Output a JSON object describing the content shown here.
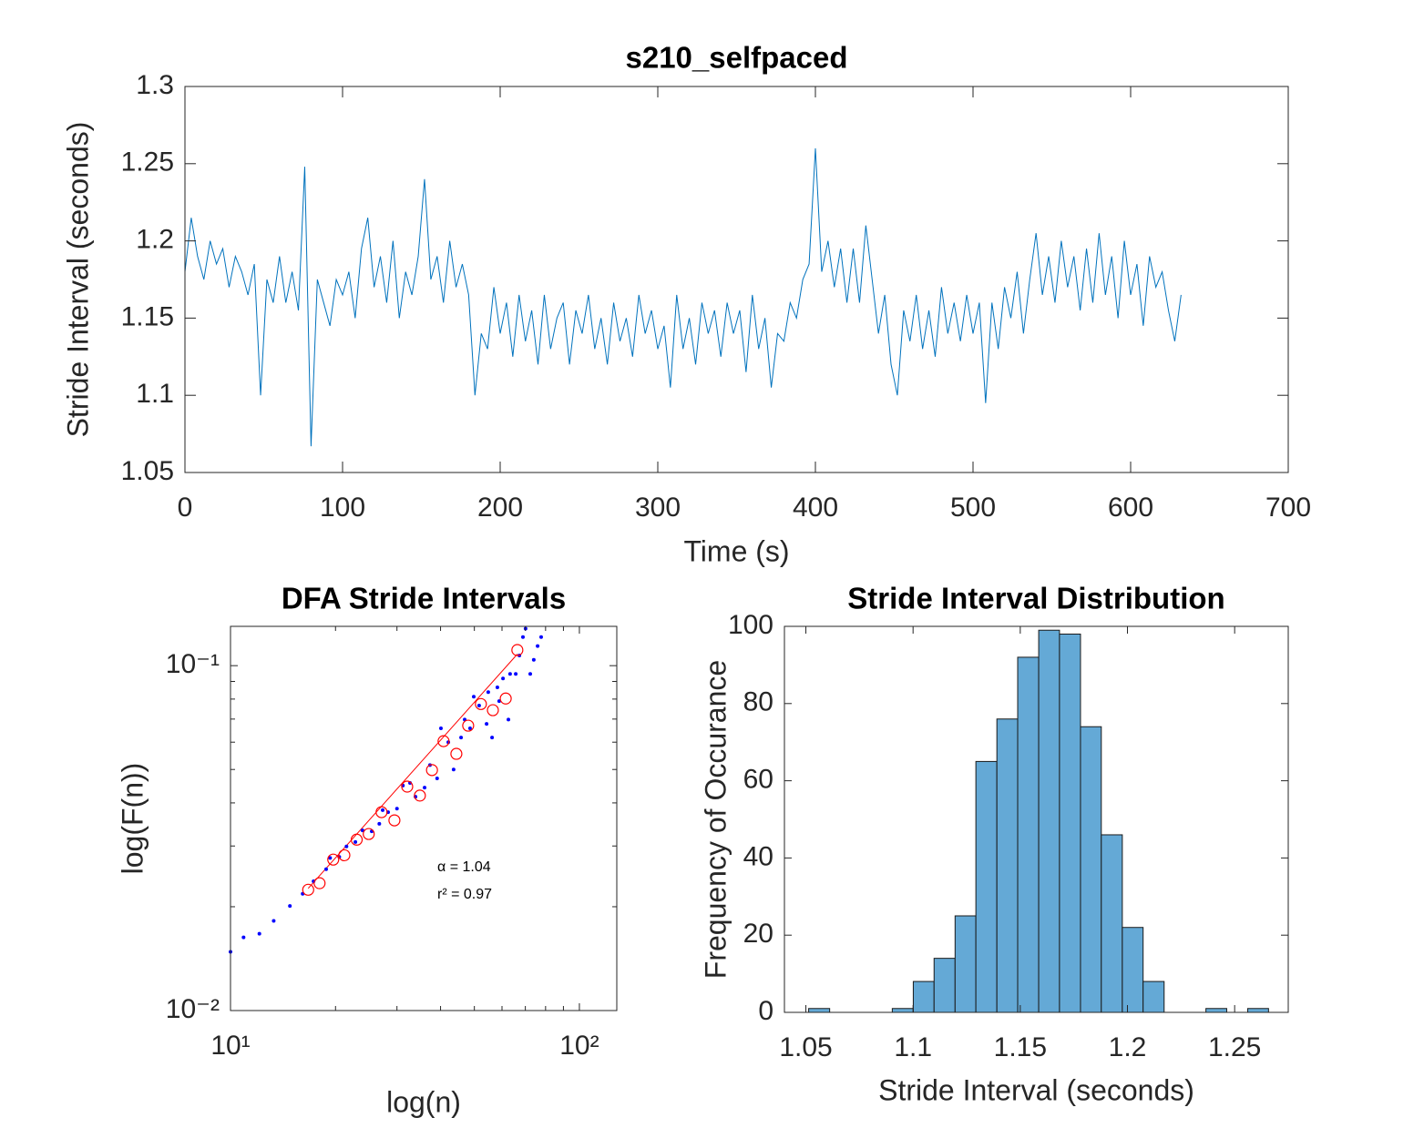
{
  "chart_data": [
    {
      "type": "line",
      "title": "s210_selfpaced",
      "xlabel": "Time (s)",
      "ylabel": "Stride Interval (seconds)",
      "xlim": [
        0,
        700
      ],
      "ylim": [
        1.05,
        1.3
      ],
      "xticks": [
        0,
        100,
        200,
        300,
        400,
        500,
        600,
        700
      ],
      "yticks": [
        1.05,
        1.1,
        1.15,
        1.2,
        1.25,
        1.3
      ],
      "series": [
        {
          "color": "#0072bd",
          "x": [
            0,
            4,
            8,
            12,
            16,
            20,
            24,
            28,
            32,
            36,
            40,
            44,
            48,
            52,
            56,
            60,
            64,
            68,
            72,
            76,
            80,
            84,
            88,
            92,
            96,
            100,
            104,
            108,
            112,
            116,
            120,
            124,
            128,
            132,
            136,
            140,
            144,
            148,
            152,
            156,
            160,
            164,
            168,
            172,
            176,
            180,
            184,
            188,
            192,
            196,
            200,
            204,
            208,
            212,
            216,
            220,
            224,
            228,
            232,
            236,
            240,
            244,
            248,
            252,
            256,
            260,
            264,
            268,
            272,
            276,
            280,
            284,
            288,
            292,
            296,
            300,
            304,
            308,
            312,
            316,
            320,
            324,
            328,
            332,
            336,
            340,
            344,
            348,
            352,
            356,
            360,
            364,
            368,
            372,
            376,
            380,
            384,
            388,
            392,
            396,
            400,
            404,
            408,
            412,
            416,
            420,
            424,
            428,
            432,
            436,
            440,
            444,
            448,
            452,
            456,
            460,
            464,
            468,
            472,
            476,
            480,
            484,
            488,
            492,
            496,
            500,
            504,
            508,
            512,
            516,
            520,
            524,
            528,
            532,
            536,
            540,
            544,
            548,
            552,
            556,
            560,
            564,
            568,
            572,
            576,
            580,
            584,
            588,
            592,
            596,
            600,
            604,
            608,
            612,
            616,
            620,
            624,
            628,
            632
          ],
          "values": [
            1.18,
            1.215,
            1.19,
            1.175,
            1.2,
            1.185,
            1.195,
            1.17,
            1.19,
            1.18,
            1.165,
            1.185,
            1.1,
            1.175,
            1.16,
            1.19,
            1.16,
            1.18,
            1.155,
            1.248,
            1.067,
            1.175,
            1.16,
            1.145,
            1.175,
            1.165,
            1.18,
            1.15,
            1.195,
            1.215,
            1.17,
            1.19,
            1.16,
            1.2,
            1.15,
            1.18,
            1.165,
            1.19,
            1.24,
            1.175,
            1.19,
            1.16,
            1.2,
            1.17,
            1.185,
            1.165,
            1.1,
            1.14,
            1.13,
            1.17,
            1.14,
            1.16,
            1.125,
            1.165,
            1.135,
            1.155,
            1.12,
            1.165,
            1.13,
            1.15,
            1.16,
            1.12,
            1.155,
            1.14,
            1.165,
            1.13,
            1.15,
            1.12,
            1.16,
            1.135,
            1.15,
            1.125,
            1.165,
            1.14,
            1.155,
            1.13,
            1.145,
            1.105,
            1.165,
            1.13,
            1.15,
            1.12,
            1.16,
            1.14,
            1.155,
            1.125,
            1.16,
            1.14,
            1.155,
            1.115,
            1.165,
            1.13,
            1.15,
            1.105,
            1.14,
            1.135,
            1.16,
            1.15,
            1.175,
            1.185,
            1.26,
            1.18,
            1.2,
            1.17,
            1.195,
            1.16,
            1.195,
            1.16,
            1.21,
            1.175,
            1.14,
            1.165,
            1.12,
            1.1,
            1.155,
            1.135,
            1.165,
            1.13,
            1.155,
            1.125,
            1.17,
            1.14,
            1.16,
            1.135,
            1.165,
            1.14,
            1.16,
            1.095,
            1.16,
            1.13,
            1.17,
            1.15,
            1.18,
            1.14,
            1.175,
            1.205,
            1.165,
            1.19,
            1.16,
            1.2,
            1.17,
            1.19,
            1.155,
            1.195,
            1.16,
            1.205,
            1.165,
            1.19,
            1.15,
            1.2,
            1.165,
            1.185,
            1.145,
            1.19,
            1.17,
            1.18,
            1.155,
            1.135,
            1.165
          ]
        }
      ]
    },
    {
      "type": "scatter",
      "title": "DFA Stride Intervals",
      "xlabel": "log(n)",
      "ylabel": "log(F(n))",
      "xscale": "log",
      "yscale": "log",
      "xlim": [
        10,
        128
      ],
      "ylim": [
        0.01,
        0.13
      ],
      "xticks": [
        {
          "value": 10,
          "label": "10¹"
        },
        {
          "value": 100,
          "label": "10²"
        }
      ],
      "yticks": [
        {
          "value": 0.01,
          "label": "10⁻²"
        },
        {
          "value": 0.1,
          "label": "10⁻¹"
        }
      ],
      "series": [
        {
          "color": "#0000ff",
          "marker": "dot",
          "x": [
            10.0,
            10.9,
            12.1,
            13.3,
            14.8,
            16.1,
            17.3,
            18.8,
            19.3,
            20.5,
            21.5,
            22.8,
            23.9,
            25.4,
            26.7,
            27.3,
            28.3,
            30.0,
            31.2,
            32.7,
            33.9,
            36.0,
            37.3,
            39.1,
            40.1,
            42.1,
            43.6,
            45.8,
            46.9,
            48.6,
            49.8,
            51.6,
            54.2,
            54.8,
            56.2,
            58.2,
            58.9,
            60.4,
            62.6,
            63.3,
            65.7,
            67.3,
            68.9,
            70.1,
            72.3,
            74.0,
            75.9,
            77.7
          ],
          "values": [
            0.0148,
            0.0163,
            0.0167,
            0.0182,
            0.0201,
            0.0218,
            0.0237,
            0.0257,
            0.0277,
            0.0279,
            0.0299,
            0.0308,
            0.0333,
            0.0331,
            0.0348,
            0.0381,
            0.0376,
            0.0385,
            0.0449,
            0.0457,
            0.0417,
            0.0443,
            0.0515,
            0.0471,
            0.0658,
            0.06,
            0.05,
            0.0619,
            0.0698,
            0.0658,
            0.0813,
            0.0766,
            0.0678,
            0.0838,
            0.0619,
            0.0865,
            0.0789,
            0.0918,
            0.0698,
            0.0946,
            0.0946,
            0.107,
            0.121,
            0.128,
            0.0946,
            0.104,
            0.114,
            0.121
          ]
        },
        {
          "color": "#ff0000",
          "marker": "circle",
          "x": [
            16.7,
            18.0,
            19.7,
            21.2,
            23.0,
            24.9,
            27.1,
            29.5,
            32.1,
            34.9,
            37.8,
            40.8,
            44.4,
            48.0,
            52.2,
            56.5,
            61.5,
            66.4
          ],
          "values": [
            0.0224,
            0.0234,
            0.0274,
            0.0282,
            0.0313,
            0.0325,
            0.0376,
            0.0356,
            0.0446,
            0.042,
            0.0498,
            0.0604,
            0.0555,
            0.067,
            0.0774,
            0.0743,
            0.0803,
            0.111
          ]
        }
      ],
      "fit": {
        "color": "#ff0000",
        "x": [
          16.7,
          66.4
        ],
        "values": [
          0.0226,
          0.108
        ]
      },
      "annotations": [
        "α = 1.04",
        "r² = 0.97"
      ]
    },
    {
      "type": "histogram",
      "title": "Stride Interval Distribution",
      "xlabel": "Stride Interval (seconds)",
      "ylabel": "Frequency of Occurance",
      "xlim": [
        1.04,
        1.275
      ],
      "ylim": [
        0,
        100
      ],
      "xticks": [
        1.05,
        1.1,
        1.15,
        1.2,
        1.25
      ],
      "yticks": [
        0,
        20,
        40,
        60,
        80,
        100
      ],
      "color": "#64a9d6",
      "bins": [
        1.0513,
        1.0611,
        1.0708,
        1.0806,
        1.0903,
        1.1001,
        1.1098,
        1.1196,
        1.1293,
        1.1391,
        1.1488,
        1.1586,
        1.1683,
        1.1781,
        1.1878,
        1.1976,
        1.2073,
        1.2171,
        1.2268,
        1.2366,
        1.2463,
        1.2561,
        1.2658
      ],
      "values": [
        1,
        0,
        0,
        0,
        1,
        8,
        14,
        25,
        65,
        76,
        92,
        99,
        98,
        74,
        46,
        22,
        8,
        0,
        0,
        1,
        0,
        1
      ]
    }
  ]
}
